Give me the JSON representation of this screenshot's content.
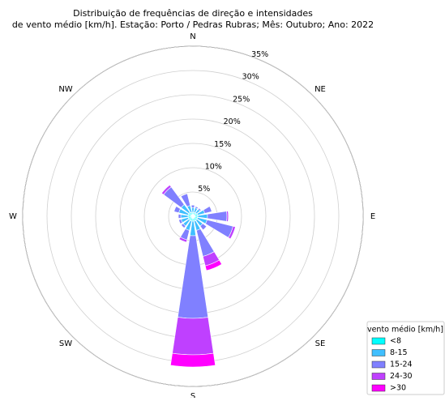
{
  "chart_data": {
    "type": "windrose",
    "title": "Distribuição de frequências de direção e intensidades",
    "subtitle": "de vento médio [km/h]. Estação: Porto / Pedras Rubras; Mês: Outubro; Ano: 2022",
    "categories": [
      "N",
      null,
      "NE",
      null,
      "E",
      null,
      "SE",
      null,
      "S",
      null,
      "SW",
      null,
      "W",
      null,
      "NW",
      null
    ],
    "series": [
      {
        "name": "<8",
        "color": "#00ffff",
        "values": [
          0.8,
          0.8,
          0.8,
          1,
          1,
          1,
          1,
          1,
          1,
          1,
          1,
          1,
          1,
          1,
          1,
          0.8
        ]
      },
      {
        "name": "8-15",
        "color": "#40bfff",
        "values": [
          1,
          1,
          1,
          1.5,
          2,
          2,
          1.5,
          2,
          3,
          2,
          1.5,
          1.5,
          1.5,
          2,
          2,
          1.5
        ]
      },
      {
        "name": "15-24",
        "color": "#8080ff",
        "values": [
          0.5,
          0.3,
          0.3,
          1.5,
          4,
          5.5,
          1,
          5.5,
          17,
          2,
          0.5,
          0.5,
          0.5,
          1,
          4.5,
          2.5
        ]
      },
      {
        "name": "24-30",
        "color": "#bf40ff",
        "values": [
          0,
          0,
          0,
          0,
          0.3,
          0.5,
          0,
          2,
          7.5,
          0.5,
          0,
          0,
          0,
          0,
          0.5,
          0
        ]
      },
      {
        "name": ">30",
        "color": "#ff00ff",
        "values": [
          0,
          0,
          0,
          0,
          0,
          0,
          0,
          1,
          2.5,
          0,
          0,
          0,
          0,
          0,
          0,
          0
        ]
      }
    ],
    "ylim": [
      0,
      35
    ],
    "yticks": [
      {
        "value": 5,
        "label": "5%"
      },
      {
        "value": 10,
        "label": "10%"
      },
      {
        "value": 15,
        "label": "15%"
      },
      {
        "value": 20,
        "label": "20%"
      },
      {
        "value": 25,
        "label": "25%"
      },
      {
        "value": 30,
        "label": "30%"
      },
      {
        "value": 35,
        "label": "35%"
      }
    ],
    "legend_title": "vento médio [km/h]",
    "legend": "lower right",
    "grid": true
  }
}
